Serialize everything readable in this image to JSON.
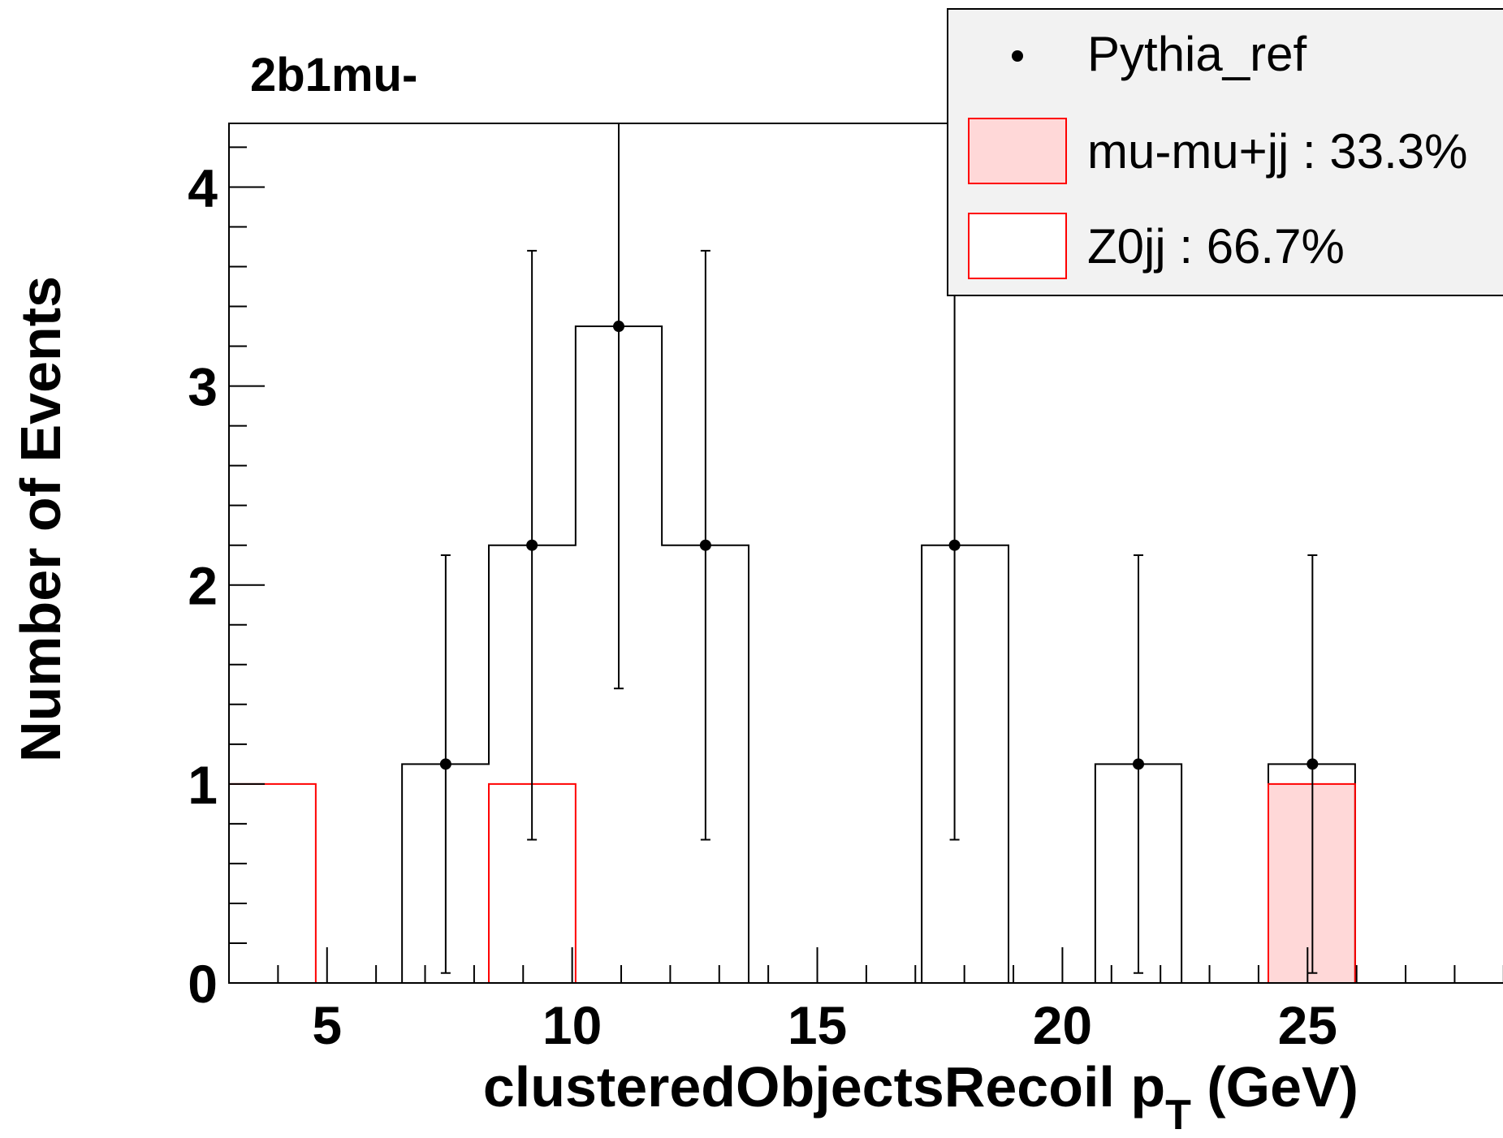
{
  "chart_data": {
    "type": "histogram",
    "title": "2b1mu-",
    "xlabel": "clusteredObjectsRecoil p",
    "xlabel_sub": "T",
    "xlabel_unit": " (GeV)",
    "ylabel": "Number of Events",
    "xlim": [
      3.0,
      29.5
    ],
    "ylim": [
      0,
      4.32
    ],
    "x_ticks": [
      "5",
      "10",
      "15",
      "20",
      "25"
    ],
    "x_tick_values": [
      5,
      10,
      15,
      20,
      25
    ],
    "y_ticks": [
      "0",
      "1",
      "2",
      "3",
      "4"
    ],
    "y_tick_values": [
      0,
      1,
      2,
      3,
      4
    ],
    "bin_edges": [
      3.0,
      4.77,
      6.53,
      8.3,
      10.07,
      11.83,
      13.6,
      15.37,
      17.13,
      18.9,
      20.67,
      22.43,
      24.2,
      25.97,
      27.73,
      29.5
    ],
    "series": [
      {
        "name": "Pythia_ref",
        "kind": "points",
        "x": [
          7.42,
          9.18,
          10.95,
          12.72,
          17.8,
          21.55,
          25.1
        ],
        "values": [
          1.1,
          2.2,
          3.3,
          2.2,
          2.2,
          1.1,
          1.1
        ],
        "err_low": [
          1.05,
          1.48,
          1.82,
          1.48,
          1.48,
          1.05,
          1.05
        ],
        "err_high": [
          1.05,
          1.48,
          1.82,
          1.48,
          2.2,
          1.05,
          1.05
        ],
        "color": "#000000"
      },
      {
        "name": "Z0jj : 66.7%",
        "kind": "hist-outline",
        "values": [
          0,
          0,
          1.1,
          2.2,
          3.3,
          2.2,
          0,
          0,
          2.2,
          0,
          1.1,
          0,
          1.1,
          0,
          0
        ],
        "line_color": "#000000"
      },
      {
        "name": "mu-mu+jj : 33.3%",
        "kind": "hist-filled",
        "values": [
          1.0,
          0,
          0,
          1.0,
          0,
          0,
          0,
          0,
          0,
          0,
          0,
          0,
          1.0,
          0,
          0
        ],
        "line_color": "#ff0000",
        "fill_color": "#ffd8d8",
        "fill_bins": [
          12
        ]
      }
    ],
    "legend": {
      "placement": "top-right",
      "entries": [
        {
          "label": "Pythia_ref",
          "marker": "point"
        },
        {
          "label": "mu-mu+jj : 33.3%",
          "marker": "filled-box"
        },
        {
          "label": "Z0jj : 66.7%",
          "marker": "open-box"
        }
      ]
    }
  }
}
